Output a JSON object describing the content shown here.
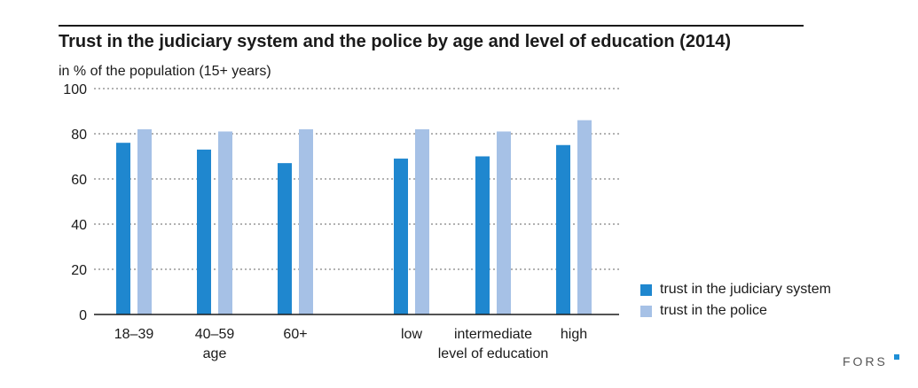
{
  "chart_data": {
    "type": "bar",
    "title": "Trust in the judiciary system and the police by age and level of education (2014)",
    "ylabel": "in % of the population (15+ years)",
    "ylim": [
      0,
      100
    ],
    "yticks": [
      0,
      20,
      40,
      60,
      80,
      100
    ],
    "categories": [
      "18–39",
      "40–59",
      "60+",
      "low",
      "intermediate",
      "high"
    ],
    "group_labels": [
      {
        "label": "age",
        "categories": [
          "18–39",
          "40–59",
          "60+"
        ]
      },
      {
        "label": "level of education",
        "categories": [
          "low",
          "intermediate",
          "high"
        ]
      }
    ],
    "series": [
      {
        "name": "trust in the judiciary system",
        "color": "#1f87cf",
        "values": [
          76,
          73,
          67,
          69,
          70,
          75
        ]
      },
      {
        "name": "trust in the police",
        "color": "#a6c1e6",
        "values": [
          82,
          81,
          82,
          82,
          81,
          86
        ]
      }
    ],
    "grid": true,
    "legend_position": "bottom-right"
  },
  "brand": {
    "name": "FORS",
    "color": "#1f8fd6"
  }
}
